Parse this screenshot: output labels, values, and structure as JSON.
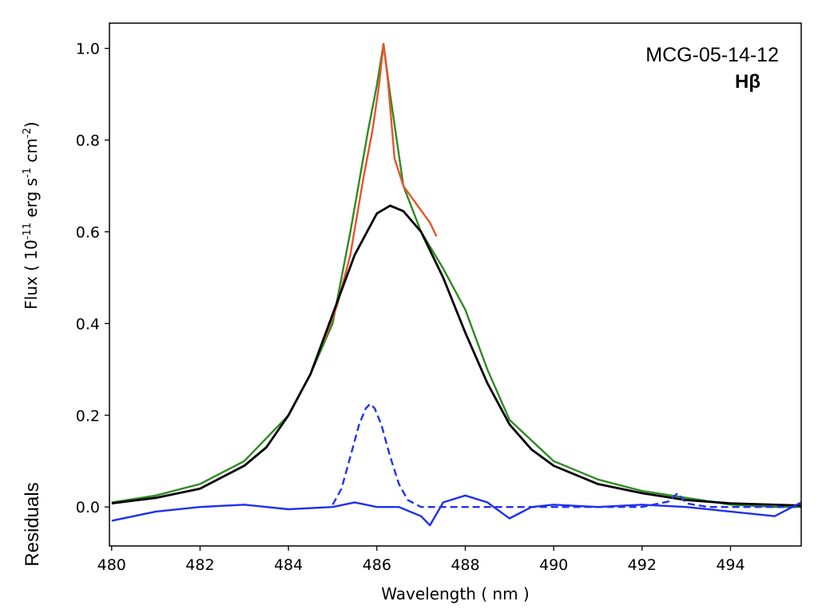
{
  "chart_data": {
    "type": "line",
    "title": "",
    "annotations": {
      "object": "MCG-05-14-12",
      "line": "Hβ"
    },
    "xlabel": "Wavelength ( nm )",
    "ylabel_main": "Flux ( 10",
    "ylabel_exp1": "-11",
    "ylabel_mid": " erg s",
    "ylabel_exp2": "-1",
    "ylabel_mid2": " cm",
    "ylabel_exp3": "-2",
    "ylabel_end": ")",
    "ylabel_residuals": "Residuals",
    "xlim": [
      479.95,
      495.6
    ],
    "ylim": [
      -0.085,
      1.055
    ],
    "xticks": [
      480,
      482,
      484,
      486,
      488,
      490,
      492,
      494
    ],
    "xtick_labels": [
      "480",
      "482",
      "484",
      "486",
      "488",
      "490",
      "492",
      "494"
    ],
    "yticks": [
      0.0,
      0.2,
      0.4,
      0.6,
      0.8,
      1.0
    ],
    "ytick_labels": [
      "0.0",
      "0.2",
      "0.4",
      "0.6",
      "0.8",
      "1.0"
    ],
    "series": [
      {
        "name": "observed spectrum",
        "color": "#2e8b22",
        "style": "solid",
        "x": [
          480.0,
          481.0,
          482.0,
          483.0,
          484.0,
          484.5,
          485.0,
          485.4,
          485.8,
          486.0,
          486.15,
          486.3,
          486.6,
          487.0,
          487.5,
          488.0,
          488.5,
          489.0,
          490.0,
          491.0,
          492.0,
          493.0,
          494.0,
          495.0,
          495.6
        ],
        "y": [
          0.01,
          0.025,
          0.05,
          0.1,
          0.2,
          0.29,
          0.4,
          0.6,
          0.82,
          0.92,
          1.01,
          0.9,
          0.7,
          0.6,
          0.52,
          0.43,
          0.3,
          0.19,
          0.1,
          0.06,
          0.035,
          0.02,
          0.005,
          0.0,
          0.0
        ]
      },
      {
        "name": "total fit",
        "color": "#e8542e",
        "style": "solid",
        "x": [
          484.8,
          485.1,
          485.4,
          485.7,
          485.9,
          486.05,
          486.15,
          486.25,
          486.4,
          486.6,
          486.9,
          487.2,
          487.35
        ],
        "y": [
          0.36,
          0.44,
          0.55,
          0.72,
          0.82,
          0.92,
          1.01,
          0.93,
          0.76,
          0.7,
          0.66,
          0.62,
          0.59
        ]
      },
      {
        "name": "broad component",
        "color": "#000000",
        "style": "solid",
        "x": [
          480.0,
          481.0,
          482.0,
          483.0,
          483.5,
          484.0,
          484.5,
          485.0,
          485.5,
          486.0,
          486.3,
          486.6,
          487.0,
          487.5,
          488.0,
          488.5,
          489.0,
          489.5,
          490.0,
          491.0,
          492.0,
          493.0,
          494.0,
          495.6
        ],
        "y": [
          0.008,
          0.02,
          0.04,
          0.09,
          0.13,
          0.2,
          0.29,
          0.42,
          0.55,
          0.64,
          0.657,
          0.645,
          0.6,
          0.5,
          0.38,
          0.27,
          0.18,
          0.125,
          0.09,
          0.05,
          0.03,
          0.015,
          0.008,
          0.003
        ]
      },
      {
        "name": "narrow component",
        "color": "#2233ee",
        "style": "dashed",
        "x": [
          485.0,
          485.2,
          485.4,
          485.6,
          485.75,
          485.85,
          485.95,
          486.1,
          486.3,
          486.5,
          486.7,
          487.0,
          488.0,
          490.0,
          492.0,
          492.6,
          492.8,
          493.0,
          493.5,
          495.6
        ],
        "y": [
          0.005,
          0.04,
          0.11,
          0.18,
          0.215,
          0.225,
          0.215,
          0.18,
          0.11,
          0.05,
          0.015,
          0.0,
          0.0,
          0.0,
          0.0,
          0.012,
          0.03,
          0.008,
          0.0,
          0.0
        ]
      },
      {
        "name": "residuals",
        "color": "#1f2ff0",
        "style": "solid",
        "x": [
          480.0,
          481.0,
          482.0,
          483.0,
          484.0,
          485.0,
          485.5,
          486.0,
          486.5,
          487.0,
          487.2,
          487.5,
          488.0,
          488.5,
          489.0,
          489.5,
          490.0,
          491.0,
          492.0,
          493.0,
          494.0,
          495.0,
          495.6
        ],
        "y": [
          -0.03,
          -0.01,
          0.0,
          0.005,
          -0.005,
          0.0,
          0.01,
          0.0,
          0.0,
          -0.02,
          -0.04,
          0.01,
          0.025,
          0.01,
          -0.025,
          0.0,
          0.005,
          0.0,
          0.005,
          0.0,
          -0.01,
          -0.02,
          0.01
        ]
      }
    ]
  }
}
